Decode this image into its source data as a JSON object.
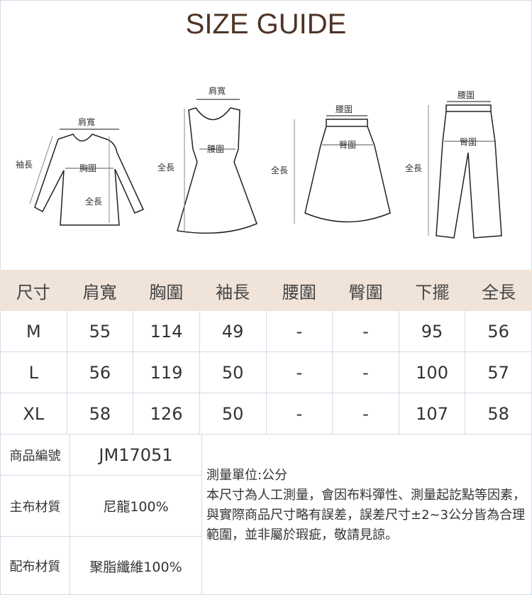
{
  "title": "SIZE GUIDE",
  "diagrams": {
    "top": {
      "shoulder": "肩寬",
      "sleeve": "袖長",
      "chest": "胸圍",
      "length": "全長"
    },
    "dress": {
      "shoulder": "肩寬",
      "waist": "腰圍",
      "length": "全長"
    },
    "skirt": {
      "waist": "腰圍",
      "hip": "臀圍",
      "length": "全長"
    },
    "pants": {
      "waist": "腰圍",
      "hip": "臀圍",
      "length": "全長"
    }
  },
  "table": {
    "headers": [
      "尺寸",
      "肩寬",
      "胸圍",
      "袖長",
      "腰圍",
      "臀圍",
      "下擺",
      "全長"
    ],
    "rows": [
      [
        "M",
        "55",
        "114",
        "49",
        "-",
        "-",
        "95",
        "56"
      ],
      [
        "L",
        "56",
        "119",
        "50",
        "-",
        "-",
        "100",
        "57"
      ],
      [
        "XL",
        "58",
        "126",
        "50",
        "-",
        "-",
        "107",
        "58"
      ]
    ]
  },
  "info": {
    "code_label": "商品編號",
    "code": "JM17051",
    "main_label": "主布材質",
    "main": "尼龍100%",
    "sub_label": "配布材質",
    "sub": "聚脂纖維100%",
    "note_title": "測量單位:公分",
    "note_body": "本尺寸為人工測量，會因布料彈性、測量起訖點等因素，與實際商品尺寸略有誤差，誤差尺寸±2~3公分皆為合理範圍，並非屬於瑕疵，敬請見諒。"
  },
  "colors": {
    "title": "#4e3426",
    "header_bg": "#efe3da",
    "border": "#d3dbe6"
  }
}
